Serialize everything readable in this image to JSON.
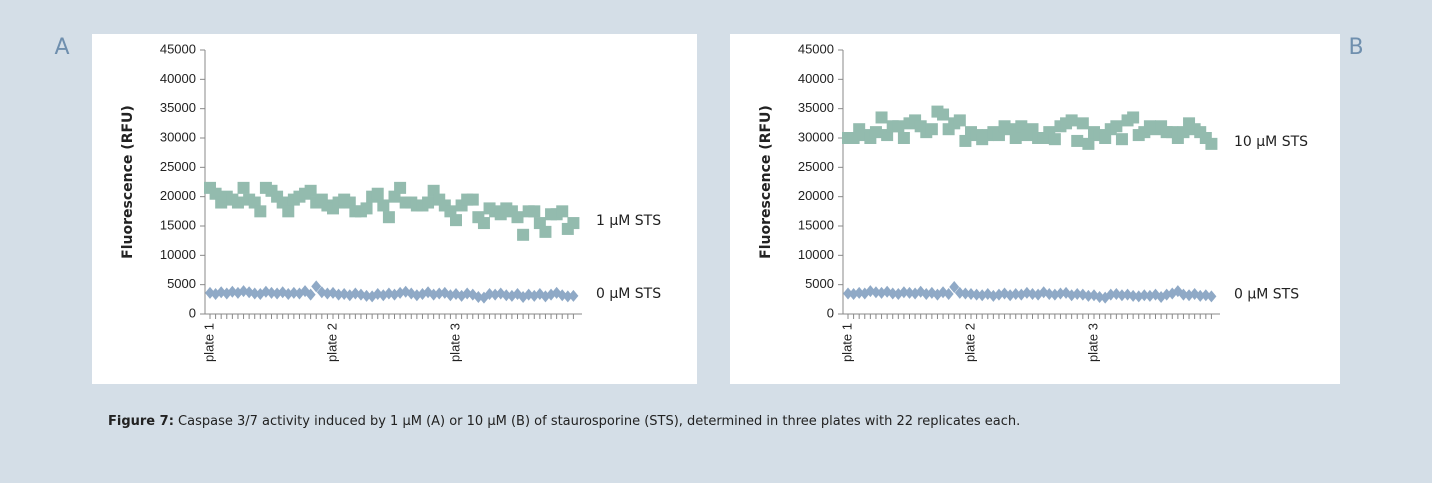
{
  "chart_data": [
    {
      "type": "scatter",
      "panel": "A",
      "y_label": "Fluorescence (RFU)",
      "categories": [
        "plate 1",
        null,
        null,
        null,
        null,
        null,
        null,
        null,
        null,
        null,
        null,
        null,
        null,
        null,
        null,
        null,
        null,
        null,
        null,
        null,
        null,
        null,
        "plate 2",
        null,
        null,
        null,
        null,
        null,
        null,
        null,
        null,
        null,
        null,
        null,
        null,
        null,
        null,
        null,
        null,
        null,
        null,
        null,
        null,
        null,
        "plate 3",
        null,
        null,
        null,
        null,
        null,
        null,
        null,
        null,
        null,
        null,
        null,
        null,
        null,
        null,
        null,
        null,
        null,
        null,
        null,
        null,
        null
      ],
      "ylim": [
        0,
        45000
      ],
      "yticks": [
        0,
        5000,
        10000,
        15000,
        20000,
        25000,
        30000,
        35000,
        40000,
        45000
      ],
      "series": [
        {
          "name": "1 µM STS",
          "color": "#93bbae",
          "marker": "square",
          "values": [
            21500,
            20500,
            19000,
            20000,
            19500,
            19000,
            21500,
            19500,
            19000,
            17500,
            21500,
            21000,
            20000,
            19000,
            17500,
            19500,
            20000,
            20500,
            21000,
            19000,
            19500,
            18500,
            18000,
            19000,
            19500,
            19000,
            17500,
            17500,
            18000,
            20000,
            20500,
            18500,
            16500,
            20000,
            21500,
            19000,
            19000,
            18500,
            18500,
            19000,
            21000,
            19500,
            18500,
            17500,
            16000,
            18500,
            19500,
            19500,
            16500,
            15500,
            18000,
            17500,
            17000,
            18000,
            17500,
            16500,
            13500,
            17500,
            17500,
            15500,
            14000,
            17000,
            17000,
            17500,
            14500,
            15500
          ]
        },
        {
          "name": "0 µM STS",
          "color": "#8fa9c6",
          "marker": "diamond",
          "values": [
            3600,
            3400,
            3700,
            3500,
            3800,
            3600,
            3900,
            3700,
            3500,
            3400,
            3800,
            3600,
            3500,
            3700,
            3400,
            3600,
            3500,
            3900,
            3300,
            4700,
            3700,
            3500,
            3600,
            3300,
            3400,
            3200,
            3500,
            3300,
            3100,
            3000,
            3400,
            3200,
            3500,
            3300,
            3600,
            3800,
            3500,
            3200,
            3400,
            3700,
            3300,
            3500,
            3600,
            3200,
            3400,
            3100,
            3500,
            3300,
            2900,
            2800,
            3400,
            3300,
            3500,
            3200,
            3100,
            3400,
            2900,
            3300,
            3100,
            3400,
            3000,
            3300,
            3600,
            3200,
            3000,
            3100
          ]
        }
      ]
    },
    {
      "type": "scatter",
      "panel": "B",
      "y_label": "Fluorescence (RFU)",
      "categories": [
        "plate 1",
        null,
        null,
        null,
        null,
        null,
        null,
        null,
        null,
        null,
        null,
        null,
        null,
        null,
        null,
        null,
        null,
        null,
        null,
        null,
        null,
        null,
        "plate 2",
        null,
        null,
        null,
        null,
        null,
        null,
        null,
        null,
        null,
        null,
        null,
        null,
        null,
        null,
        null,
        null,
        null,
        null,
        null,
        null,
        null,
        "plate 3",
        null,
        null,
        null,
        null,
        null,
        null,
        null,
        null,
        null,
        null,
        null,
        null,
        null,
        null,
        null,
        null,
        null,
        null,
        null,
        null,
        null
      ],
      "ylim": [
        0,
        45000
      ],
      "yticks": [
        0,
        5000,
        10000,
        15000,
        20000,
        25000,
        30000,
        35000,
        40000,
        45000
      ],
      "series": [
        {
          "name": "10 µM STS",
          "color": "#93bbae",
          "marker": "square",
          "values": [
            30000,
            30000,
            31500,
            30500,
            30000,
            31000,
            33500,
            30500,
            32000,
            32000,
            30000,
            32500,
            33000,
            32000,
            31000,
            31500,
            34500,
            34000,
            31500,
            32500,
            33000,
            29500,
            31000,
            30500,
            29800,
            30500,
            31000,
            30500,
            32000,
            31500,
            30000,
            32000,
            30500,
            31500,
            30000,
            30000,
            31000,
            29800,
            32000,
            32500,
            33000,
            29500,
            32500,
            29000,
            31000,
            30500,
            30000,
            31500,
            32000,
            29800,
            33000,
            33500,
            30500,
            31000,
            32000,
            31500,
            32000,
            31000,
            31000,
            30000,
            31000,
            32500,
            31500,
            31000,
            30000,
            29000
          ]
        },
        {
          "name": "0 µM STS",
          "color": "#8fa9c6",
          "marker": "diamond",
          "values": [
            3500,
            3400,
            3600,
            3500,
            3900,
            3700,
            3600,
            3800,
            3500,
            3400,
            3700,
            3600,
            3500,
            3800,
            3400,
            3600,
            3300,
            3700,
            3400,
            4600,
            3600,
            3500,
            3400,
            3300,
            3200,
            3400,
            3100,
            3300,
            3500,
            3200,
            3400,
            3300,
            3600,
            3400,
            3300,
            3700,
            3400,
            3300,
            3500,
            3600,
            3200,
            3400,
            3300,
            3100,
            3200,
            2900,
            2800,
            3300,
            3400,
            3200,
            3300,
            3100,
            3000,
            3200,
            3100,
            3300,
            2900,
            3300,
            3500,
            3900,
            3300,
            3200,
            3400,
            3100,
            3200,
            3000
          ]
        }
      ]
    }
  ],
  "caption": {
    "label": "Figure 7:",
    "text": "Caspase 3/7 activity induced by 1 µM (A) or 10 µM (B) of staurosporine (STS), determined in three plates with 22 replicates each."
  }
}
